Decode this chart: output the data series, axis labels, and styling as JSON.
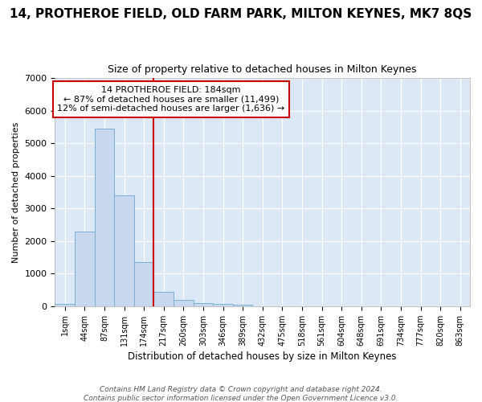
{
  "title": "14, PROTHEROE FIELD, OLD FARM PARK, MILTON KEYNES, MK7 8QS",
  "subtitle": "Size of property relative to detached houses in Milton Keynes",
  "xlabel": "Distribution of detached houses by size in Milton Keynes",
  "ylabel": "Number of detached properties",
  "bin_labels": [
    "1sqm",
    "44sqm",
    "87sqm",
    "131sqm",
    "174sqm",
    "217sqm",
    "260sqm",
    "303sqm",
    "346sqm",
    "389sqm",
    "432sqm",
    "475sqm",
    "518sqm",
    "561sqm",
    "604sqm",
    "648sqm",
    "691sqm",
    "734sqm",
    "777sqm",
    "820sqm",
    "863sqm"
  ],
  "bar_heights": [
    80,
    2300,
    5450,
    3400,
    1350,
    450,
    190,
    100,
    60,
    50,
    0,
    0,
    0,
    0,
    0,
    0,
    0,
    0,
    0,
    0,
    0
  ],
  "bar_color": "#c8d8ee",
  "bar_edgecolor": "#7aafd4",
  "vline_color": "#cc0000",
  "annotation_text": "14 PROTHEROE FIELD: 184sqm\n← 87% of detached houses are smaller (11,499)\n12% of semi-detached houses are larger (1,636) →",
  "annotation_box_color": "#ffffff",
  "annotation_box_edgecolor": "#cc0000",
  "ylim": [
    0,
    7000
  ],
  "yticks": [
    0,
    1000,
    2000,
    3000,
    4000,
    5000,
    6000,
    7000
  ],
  "plot_bg_color": "#dce8f5",
  "fig_bg_color": "#ffffff",
  "footer_text": "Contains HM Land Registry data © Crown copyright and database right 2024.\nContains public sector information licensed under the Open Government Licence v3.0.",
  "title_fontsize": 11,
  "subtitle_fontsize": 9
}
